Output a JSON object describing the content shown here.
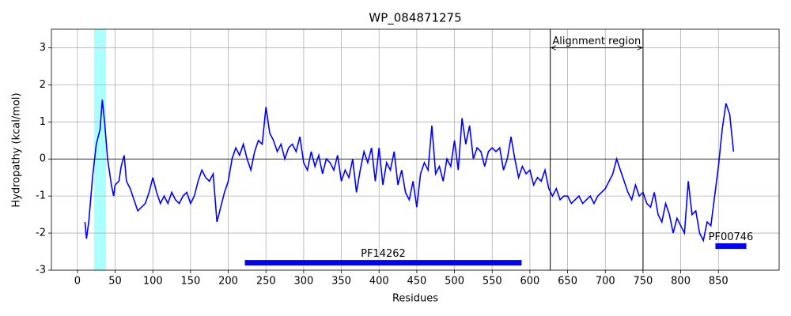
{
  "chart_data": {
    "type": "line",
    "title": "WP_084871275",
    "x_label": "Residues",
    "y_label": "Hydropathy (kcal/mol)",
    "color": "#0000ff",
    "x": [
      10,
      12,
      15,
      20,
      25,
      30,
      33,
      36,
      40,
      45,
      48,
      50,
      55,
      58,
      62,
      65,
      70,
      75,
      80,
      85,
      90,
      95,
      100,
      105,
      110,
      115,
      120,
      125,
      130,
      135,
      140,
      145,
      150,
      155,
      160,
      165,
      170,
      175,
      180,
      185,
      190,
      195,
      200,
      205,
      210,
      215,
      220,
      225,
      230,
      235,
      240,
      245,
      250,
      255,
      260,
      265,
      270,
      275,
      280,
      285,
      290,
      295,
      300,
      305,
      310,
      315,
      320,
      325,
      330,
      335,
      340,
      345,
      350,
      355,
      360,
      365,
      370,
      375,
      380,
      385,
      390,
      395,
      400,
      405,
      410,
      415,
      420,
      425,
      430,
      435,
      440,
      445,
      450,
      455,
      460,
      465,
      470,
      475,
      480,
      485,
      490,
      495,
      500,
      505,
      510,
      515,
      520,
      525,
      530,
      535,
      540,
      545,
      550,
      555,
      560,
      565,
      570,
      575,
      580,
      585,
      590,
      595,
      600,
      605,
      610,
      615,
      620,
      625,
      630,
      635,
      640,
      645,
      650,
      655,
      660,
      665,
      670,
      675,
      680,
      685,
      690,
      695,
      700,
      705,
      710,
      715,
      720,
      725,
      730,
      735,
      740,
      745,
      750,
      755,
      760,
      765,
      770,
      775,
      780,
      785,
      790,
      795,
      800,
      805,
      810,
      815,
      820,
      825,
      830,
      835,
      840,
      845,
      850,
      855,
      860,
      865,
      870
    ],
    "values": [
      -1.7,
      -2.15,
      -1.7,
      -0.5,
      0.4,
      0.8,
      1.6,
      1.0,
      0.0,
      -0.7,
      -1.0,
      -0.7,
      -0.6,
      -0.2,
      0.1,
      -0.6,
      -0.8,
      -1.1,
      -1.4,
      -1.3,
      -1.2,
      -0.9,
      -0.5,
      -0.9,
      -1.2,
      -1.0,
      -1.2,
      -0.9,
      -1.1,
      -1.2,
      -1.0,
      -0.9,
      -1.2,
      -1.0,
      -0.6,
      -0.3,
      -0.5,
      -0.6,
      -0.4,
      -1.7,
      -1.3,
      -0.9,
      -0.6,
      0.0,
      0.3,
      0.1,
      0.4,
      0.0,
      -0.3,
      0.2,
      0.5,
      0.4,
      1.4,
      0.7,
      0.5,
      0.2,
      0.4,
      0.0,
      0.3,
      0.4,
      0.2,
      0.6,
      -0.1,
      -0.3,
      0.2,
      -0.2,
      0.1,
      -0.4,
      0.0,
      -0.1,
      -0.3,
      0.1,
      -0.6,
      -0.3,
      -0.5,
      0.0,
      -0.9,
      -0.3,
      0.2,
      -0.1,
      0.3,
      -0.6,
      0.3,
      -0.7,
      -0.1,
      -0.3,
      0.2,
      -0.7,
      -0.3,
      -0.9,
      -1.1,
      -0.6,
      -1.3,
      -0.4,
      -0.1,
      -0.3,
      0.9,
      -0.4,
      -0.2,
      -0.6,
      0.0,
      -0.2,
      0.5,
      -0.3,
      1.1,
      0.4,
      0.9,
      0.0,
      0.3,
      0.2,
      -0.2,
      0.2,
      0.3,
      0.2,
      0.3,
      -0.3,
      0.0,
      0.6,
      0.0,
      -0.5,
      -0.2,
      -0.4,
      -0.3,
      -0.7,
      -0.5,
      -0.6,
      -0.3,
      -0.8,
      -1.0,
      -0.8,
      -1.1,
      -1.0,
      -1.0,
      -1.2,
      -1.1,
      -1.0,
      -1.2,
      -1.1,
      -1.0,
      -1.2,
      -1.0,
      -0.9,
      -0.8,
      -0.6,
      -0.4,
      0.0,
      -0.3,
      -0.6,
      -0.9,
      -1.1,
      -0.7,
      -1.0,
      -0.9,
      -1.2,
      -1.3,
      -0.9,
      -1.5,
      -1.7,
      -1.2,
      -1.5,
      -2.0,
      -1.6,
      -1.8,
      -2.0,
      -0.6,
      -1.5,
      -1.4,
      -2.0,
      -2.2,
      -1.7,
      -1.8,
      -1.0,
      -0.2,
      0.8,
      1.5,
      1.2,
      0.2
    ],
    "xlim": [
      -34.5,
      930.5
    ],
    "ylim": [
      -3,
      3.5
    ],
    "xticks": [
      0,
      50,
      100,
      150,
      200,
      250,
      300,
      350,
      400,
      450,
      500,
      550,
      600,
      650,
      700,
      750,
      800,
      850
    ],
    "yticks": [
      -3,
      -2,
      -1,
      0,
      1,
      2,
      3
    ],
    "grid": true,
    "zero_line": 0,
    "highlight": {
      "start": 22,
      "end": 38,
      "color": "#aaffff"
    },
    "region": {
      "label": "Alignment region",
      "start": 627,
      "end": 750,
      "y": 3
    },
    "domains": [
      {
        "label": "PF14262",
        "start": 222,
        "end": 589,
        "y": -2.8
      },
      {
        "label": "PF00746",
        "start": 846,
        "end": 887,
        "y": -2.35
      }
    ]
  }
}
